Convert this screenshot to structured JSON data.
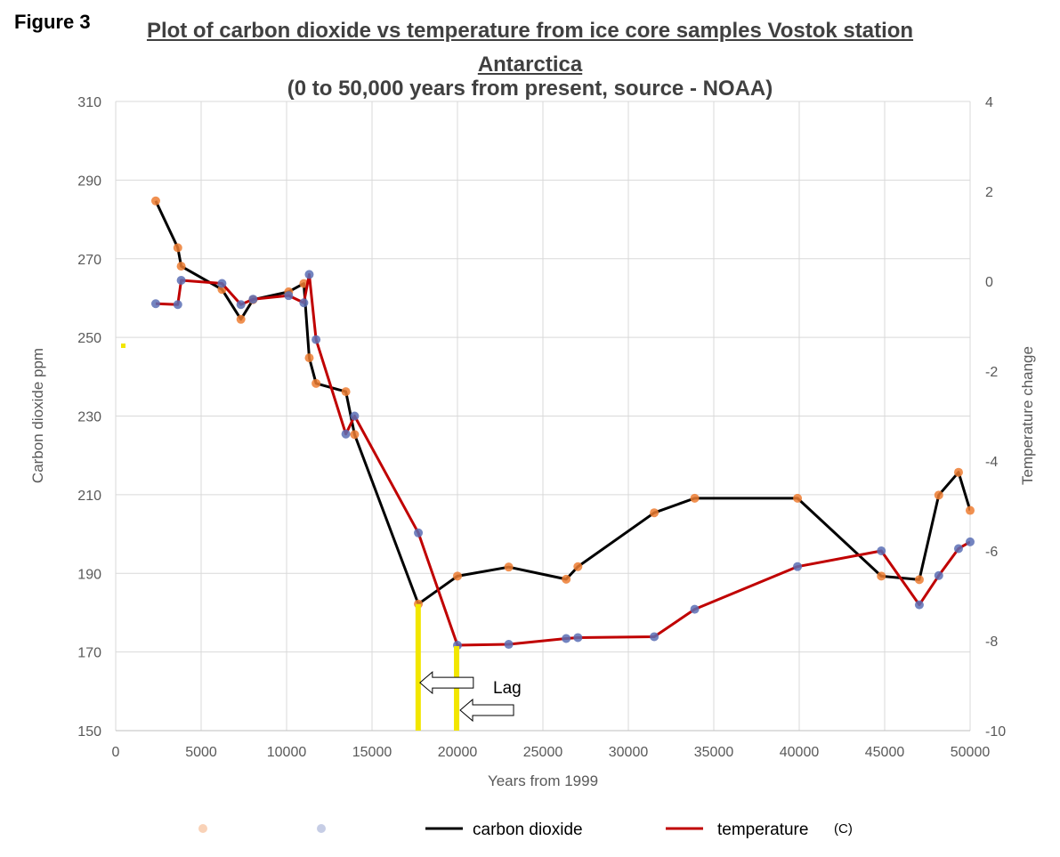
{
  "figure_label": "Figure 3",
  "chart_data": {
    "type": "line",
    "title_line1": "Plot of carbon dioxide vs temperature  from ice core samples Vostok station",
    "title_line2": "Antarctica",
    "title_line3": "(0 to 50,000 years from present, source - NOAA)",
    "xlabel": "Years from 1999",
    "ylabel_left": "Carbon dioxide ppm",
    "ylabel_right": "Temperature change",
    "xlim": [
      0,
      50000
    ],
    "ylim_left": [
      150,
      310
    ],
    "ylim_right": [
      -10,
      4
    ],
    "x_ticks": [
      "0",
      "5000",
      "10000",
      "15000",
      "20000",
      "25000",
      "30000",
      "35000",
      "40000",
      "45000",
      "50000"
    ],
    "y_left_ticks": [
      "150",
      "170",
      "190",
      "210",
      "230",
      "250",
      "270",
      "290",
      "310"
    ],
    "y_right_ticks": [
      "-10",
      "-8",
      "-6",
      "-4",
      "-2",
      "0",
      "2",
      "4"
    ],
    "grid": true,
    "legend_position": "bottom",
    "series": [
      {
        "name": "carbon dioxide",
        "axis": "left",
        "color": "#000000",
        "marker_color": "#ED7D31",
        "x": [
          2342,
          3634,
          3833,
          6220,
          7327,
          8040,
          10123,
          11010,
          11326,
          11726,
          13469,
          13980,
          17711,
          20000,
          23000,
          26363,
          27048,
          31515,
          33883,
          39900,
          44804,
          47028,
          48166,
          49322,
          50000
        ],
        "y": [
          284.7,
          272.8,
          268.1,
          262.2,
          254.6,
          259.6,
          261.6,
          263.7,
          244.8,
          238.3,
          236.2,
          225.3,
          182.2,
          189.3,
          191.6,
          188.5,
          191.7,
          205.4,
          209.1,
          209.1,
          189.3,
          188.4,
          209.9,
          215.7,
          206.0
        ]
      },
      {
        "name": "temperature",
        "axis": "right",
        "color": "#C00000",
        "marker_color": "#5B6FB5",
        "x": [
          2342,
          3634,
          3833,
          6220,
          7327,
          8040,
          10123,
          11010,
          11326,
          11726,
          13469,
          13980,
          17711,
          20000,
          23000,
          26363,
          27048,
          31515,
          33883,
          39900,
          44804,
          47028,
          48166,
          49322,
          50000
        ],
        "y": [
          -0.5,
          -0.52,
          0.02,
          -0.05,
          -0.52,
          -0.4,
          -0.32,
          -0.48,
          0.15,
          -1.3,
          -3.4,
          -3.0,
          -5.6,
          -8.1,
          -8.08,
          -7.95,
          -7.93,
          -7.91,
          -7.3,
          -6.35,
          -6.0,
          -7.2,
          -6.55,
          -5.95,
          -5.8
        ]
      }
    ],
    "annotations": [
      {
        "text": "Lag",
        "x": 18500,
        "y_left": 161
      }
    ],
    "lag_markers_x": [
      17700,
      19950
    ],
    "legend_entries": [
      "carbon dioxide",
      "temperature",
      "(C)"
    ]
  }
}
